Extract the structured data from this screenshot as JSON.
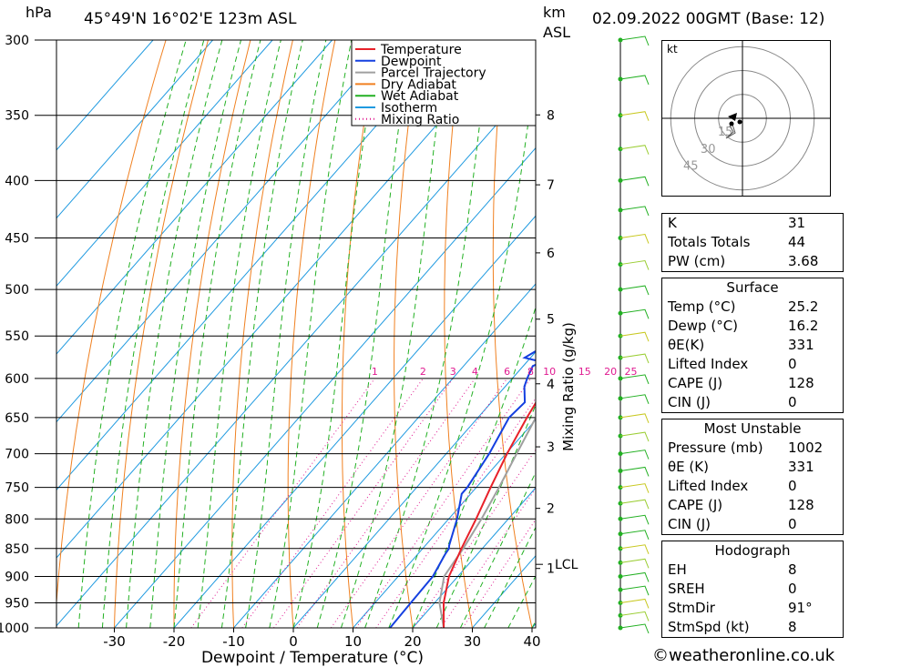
{
  "header": {
    "pressure_unit": "hPa",
    "location": "45°49'N 16°02'E 123m ASL",
    "km_label_1": "km",
    "km_label_2": "ASL",
    "datetime": "02.09.2022 00GMT (Base: 12)"
  },
  "chart_data": {
    "type": "skew-t",
    "xlabel": "Dewpoint / Temperature (°C)",
    "ylabel_right": "Mixing Ratio (g/kg)",
    "x_ticks": [
      -30,
      -20,
      -10,
      0,
      10,
      20,
      30,
      40
    ],
    "pressure_levels": [
      300,
      350,
      400,
      450,
      500,
      550,
      600,
      650,
      700,
      750,
      800,
      850,
      900,
      950,
      1000
    ],
    "km_ticks": [
      "1",
      "2",
      "3",
      "4",
      "5",
      "6",
      "7",
      "8"
    ],
    "lcl_label": "LCL",
    "lcl_pressure": 878,
    "mixing_ratio_labels": [
      "1",
      "2",
      "3",
      "4",
      "6",
      "8",
      "10",
      "15",
      "20",
      "25"
    ],
    "legend": [
      "Temperature",
      "Dewpoint",
      "Parcel Trajectory",
      "Dry Adiabat",
      "Wet Adiabat",
      "Isotherm",
      "Mixing Ratio"
    ],
    "colors": {
      "temperature": "#e8212a",
      "dewpoint": "#1540e0",
      "parcel": "#a0a0a0",
      "dry_adiabat": "#f08020",
      "wet_adiabat": "#22b022",
      "isotherm": "#1f9ae0",
      "mixing_ratio": "#e01a90"
    },
    "temperature": [
      [
        1000,
        25.2
      ],
      [
        950,
        21.5
      ],
      [
        900,
        18.5
      ],
      [
        850,
        16.5
      ],
      [
        800,
        14.6
      ],
      [
        750,
        12.4
      ],
      [
        700,
        10.2
      ],
      [
        650,
        8.2
      ],
      [
        630,
        7.5
      ],
      [
        625,
        9.3
      ],
      [
        600,
        7.8
      ],
      [
        550,
        5.2
      ],
      [
        500,
        3.0
      ],
      [
        450,
        0.5
      ],
      [
        400,
        -2.3
      ],
      [
        350,
        -6.7
      ],
      [
        300,
        -12.0
      ]
    ],
    "dewpoint": [
      [
        1000,
        16.2
      ],
      [
        950,
        16.0
      ],
      [
        900,
        15.8
      ],
      [
        860,
        14.6
      ],
      [
        850,
        14.4
      ],
      [
        845,
        14.0
      ],
      [
        800,
        11.4
      ],
      [
        760,
        8.5
      ],
      [
        750,
        8.5
      ],
      [
        700,
        7.2
      ],
      [
        650,
        5.2
      ],
      [
        630,
        5.6
      ],
      [
        610,
        3.2
      ],
      [
        600,
        2.5
      ],
      [
        585,
        1.6
      ],
      [
        580,
        2.5
      ],
      [
        575,
        -1.0
      ],
      [
        545,
        2.6
      ],
      [
        500,
        -4.0
      ],
      [
        480,
        -3.0
      ],
      [
        470,
        -5.0
      ],
      [
        467,
        -1.0
      ],
      [
        450,
        -7.5
      ],
      [
        449,
        -1.5
      ],
      [
        430,
        -2.0
      ],
      [
        400,
        -5.0
      ],
      [
        380,
        -7.0
      ],
      [
        350,
        -20.0
      ],
      [
        300,
        -20.0
      ]
    ],
    "parcel": [
      [
        1000,
        25.2
      ],
      [
        950,
        20.8
      ],
      [
        900,
        17.7
      ],
      [
        878,
        17.3
      ],
      [
        850,
        16.8
      ],
      [
        800,
        15.5
      ],
      [
        750,
        13.8
      ],
      [
        700,
        11.8
      ],
      [
        650,
        9.7
      ],
      [
        600,
        7.3
      ],
      [
        550,
        4.7
      ],
      [
        500,
        1.6
      ],
      [
        450,
        -1.5
      ],
      [
        400,
        -5.2
      ],
      [
        350,
        -10.0
      ],
      [
        300,
        -15.5
      ]
    ],
    "hodograph": {
      "unit": "kt",
      "ring_labels": [
        "15",
        "30",
        "45"
      ]
    }
  },
  "indices": [
    {
      "label": "K",
      "value": "31"
    },
    {
      "label": "Totals Totals",
      "value": "44"
    },
    {
      "label": "PW (cm)",
      "value": "3.68"
    }
  ],
  "surface": {
    "title": "Surface",
    "rows": [
      {
        "label": "Temp (°C)",
        "value": "25.2"
      },
      {
        "label": "Dewp (°C)",
        "value": "16.2"
      },
      {
        "label": "θE(K)",
        "value": "331"
      },
      {
        "label": "Lifted Index",
        "value": "0"
      },
      {
        "label": "CAPE (J)",
        "value": "128"
      },
      {
        "label": "CIN (J)",
        "value": "0"
      }
    ]
  },
  "most_unstable": {
    "title": "Most Unstable",
    "rows": [
      {
        "label": "Pressure (mb)",
        "value": "1002"
      },
      {
        "label": "θE (K)",
        "value": "331"
      },
      {
        "label": "Lifted Index",
        "value": "0"
      },
      {
        "label": "CAPE (J)",
        "value": "128"
      },
      {
        "label": "CIN (J)",
        "value": "0"
      }
    ]
  },
  "hodograph_table": {
    "title": "Hodograph",
    "rows": [
      {
        "label": "EH",
        "value": "8"
      },
      {
        "label": "SREH",
        "value": "0"
      },
      {
        "label": "StmDir",
        "value": "91°"
      },
      {
        "label": "StmSpd (kt)",
        "value": "8"
      }
    ]
  },
  "credit": "©weatheronline.co.uk"
}
